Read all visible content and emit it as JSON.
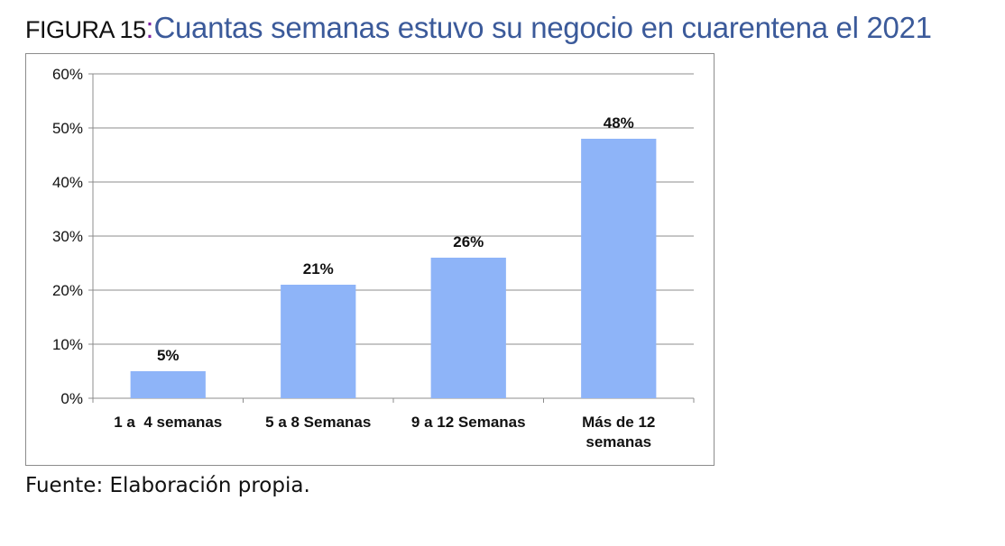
{
  "figure": {
    "label": "FIGURA 15",
    "separator": ":",
    "heading": "Cuantas semanas estuvo su negocio en cuarentena el 2021"
  },
  "source_note": "Fuente: Elaboración propia.",
  "colors": {
    "bar": "#8eb4f8",
    "gridline": "#8c8c8c",
    "heading": "#3b5a9a",
    "colon": "#7a1fa2"
  },
  "chart_data": {
    "type": "bar",
    "title": "",
    "xlabel": "",
    "ylabel": "",
    "categories": [
      [
        "1 a  4 semanas"
      ],
      [
        "5 a 8 Semanas"
      ],
      [
        "9 a 12 Semanas"
      ],
      [
        "Más de 12",
        "semanas"
      ]
    ],
    "values": [
      5,
      21,
      26,
      48
    ],
    "data_labels": [
      "5%",
      "21%",
      "26%",
      "48%"
    ],
    "ylim": [
      0,
      60
    ],
    "yticks": [
      0,
      10,
      20,
      30,
      40,
      50,
      60
    ],
    "ytick_labels": [
      "0%",
      "10%",
      "20%",
      "30%",
      "40%",
      "50%",
      "60%"
    ],
    "grid": true,
    "legend": "none"
  }
}
